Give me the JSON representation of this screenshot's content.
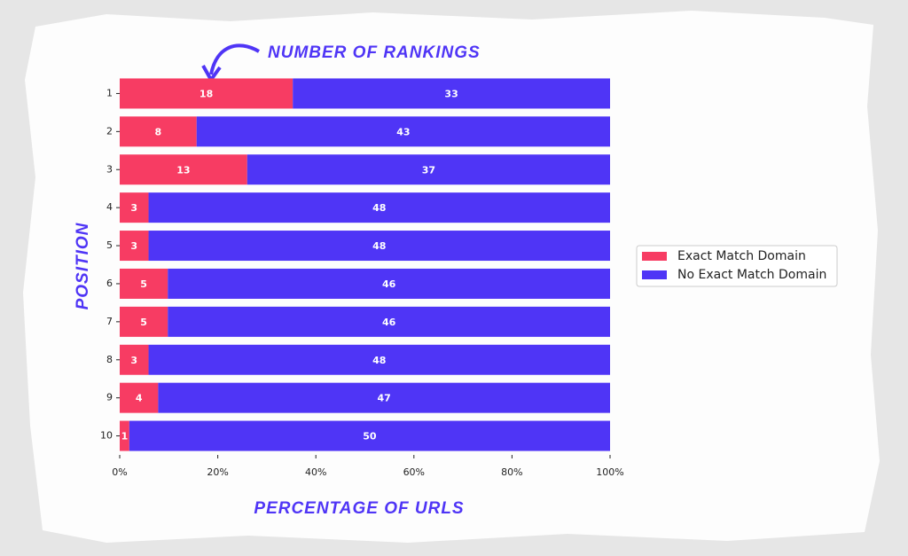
{
  "chart_data": {
    "type": "bar",
    "orientation": "horizontal",
    "stacked": "percent",
    "title": "NUMBER OF RANKINGS",
    "x_label": "PERCENTAGE OF URLS",
    "y_label": "POSITION",
    "categories": [
      "1",
      "2",
      "3",
      "4",
      "5",
      "6",
      "7",
      "8",
      "9",
      "10"
    ],
    "series": [
      {
        "name": "Exact Match Domain",
        "color": "#f73c63",
        "values": [
          18,
          8,
          13,
          3,
          3,
          5,
          5,
          3,
          4,
          1
        ]
      },
      {
        "name": "No Exact Match Domain",
        "color": "#4f35f6",
        "values": [
          33,
          43,
          37,
          48,
          48,
          46,
          46,
          48,
          47,
          50
        ]
      }
    ],
    "xlim": [
      0,
      100
    ],
    "xticks": [
      {
        "value": 0,
        "label": "0%"
      },
      {
        "value": 20,
        "label": "20%"
      },
      {
        "value": 40,
        "label": "40%"
      },
      {
        "value": 60,
        "label": "60%"
      },
      {
        "value": 80,
        "label": "80%"
      },
      {
        "value": 100,
        "label": "100%"
      }
    ],
    "legend": "right",
    "value_label_color": "#ffffff"
  }
}
